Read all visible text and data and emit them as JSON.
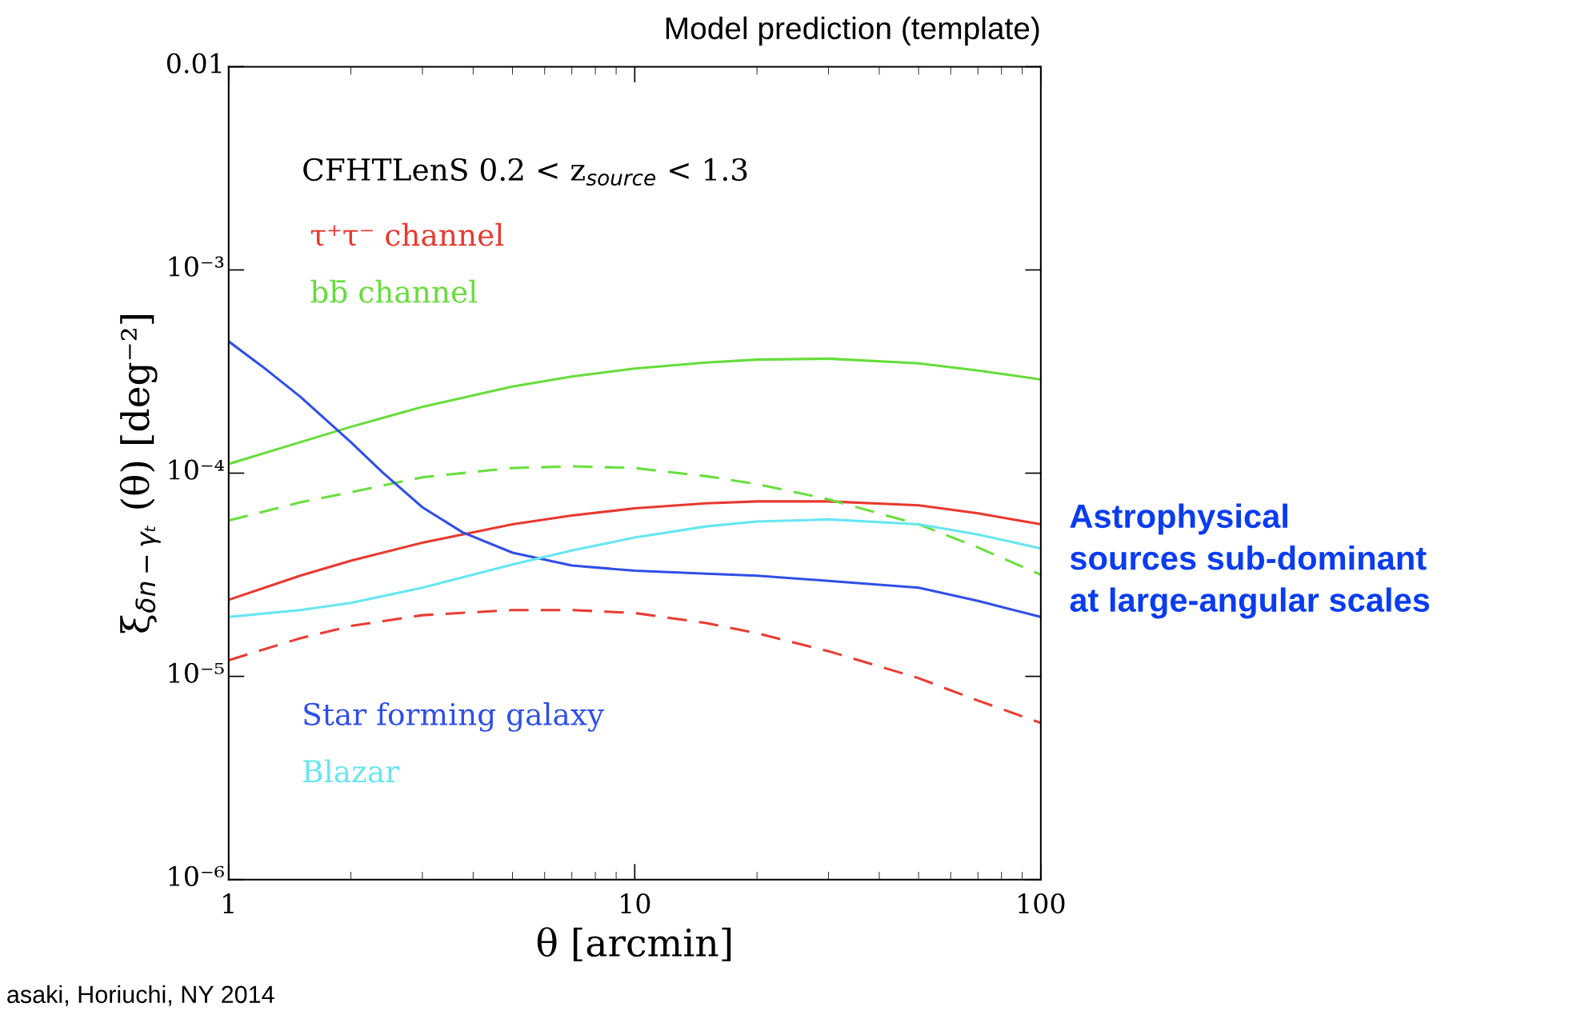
{
  "chart_data": {
    "type": "line",
    "title": "Model prediction (template)",
    "xlabel": "θ [arcmin]",
    "ylabel": "ξ$_{δn−γₜ}$ (θ) [deg⁻²]",
    "log": "xy",
    "xlim": [
      1,
      100
    ],
    "ylim": [
      1e-06,
      0.01
    ],
    "xticks": [
      1,
      10,
      100
    ],
    "yticks": [
      {
        "value": 1e-06,
        "label": "10⁻⁶"
      },
      {
        "value": 1e-05,
        "label": "10⁻⁵"
      },
      {
        "value": 0.0001,
        "label": "10⁻⁴"
      },
      {
        "value": 0.001,
        "label": "10⁻³"
      },
      {
        "value": 0.01,
        "label": "0.01"
      }
    ],
    "grid": false,
    "series": [
      {
        "name": "τ⁺τ⁻ channel",
        "color": "#e8392f",
        "line_style": "solid",
        "x": [
          1,
          1.5,
          2,
          3,
          5,
          7,
          10,
          15,
          20,
          30,
          50,
          70,
          100
        ],
        "values": [
          2.38e-05,
          3.13e-05,
          3.71e-05,
          4.55e-05,
          5.6e-05,
          6.19e-05,
          6.71e-05,
          7.1e-05,
          7.26e-05,
          7.26e-05,
          6.95e-05,
          6.34e-05,
          5.6e-05
        ]
      },
      {
        "color": "#ea3c33",
        "line_style": "dashed",
        "x": [
          1,
          1.5,
          2,
          3,
          5,
          7,
          10,
          15,
          20,
          30,
          50,
          70,
          100
        ],
        "values": [
          1.2e-05,
          1.54e-05,
          1.77e-05,
          2e-05,
          2.12e-05,
          2.12e-05,
          2.05e-05,
          1.83e-05,
          1.63e-05,
          1.33e-05,
          9.8e-06,
          7.6e-06,
          5.9e-06
        ]
      },
      {
        "name": "bb̄ channel",
        "color": "#66dd3a",
        "line_style": "solid",
        "x": [
          1,
          1.5,
          2,
          3,
          5,
          7,
          10,
          15,
          20,
          30,
          50,
          70,
          100
        ],
        "values": [
          0.000111,
          0.000142,
          0.000169,
          0.000212,
          0.000267,
          0.000299,
          0.000327,
          0.00035,
          0.000362,
          0.000366,
          0.000347,
          0.00032,
          0.000289
        ]
      },
      {
        "color": "#69df3e",
        "line_style": "dashed",
        "x": [
          1,
          1.5,
          2,
          3,
          5,
          7,
          10,
          15,
          20,
          30,
          50,
          70,
          100
        ],
        "values": [
          5.85e-05,
          7.18e-05,
          8.05e-05,
          9.55e-05,
          0.000106,
          0.000108,
          0.000106,
          9.66e-05,
          8.83e-05,
          7.43e-05,
          5.6e-05,
          4.31e-05,
          3.16e-05
        ]
      },
      {
        "name": "Star forming galaxy",
        "color": "#2f4fe8",
        "line_style": "solid",
        "x": [
          1,
          1.21,
          1.5,
          2,
          2.39,
          3,
          3.77,
          5,
          7,
          10,
          15,
          20,
          30,
          50,
          70,
          100
        ],
        "values": [
          0.000445,
          0.000335,
          0.000238,
          0.000142,
          0.000101,
          6.79e-05,
          5.11e-05,
          4.06e-05,
          3.51e-05,
          3.31e-05,
          3.2e-05,
          3.13e-05,
          2.95e-05,
          2.73e-05,
          2.35e-05,
          1.96e-05
        ]
      },
      {
        "name": "Blazar",
        "color": "#66e6f0",
        "line_style": "solid",
        "x": [
          1,
          1.5,
          2,
          3,
          5,
          7,
          10,
          15,
          20,
          30,
          50,
          70,
          100
        ],
        "values": [
          1.96e-05,
          2.12e-05,
          2.3e-05,
          2.73e-05,
          3.55e-05,
          4.16e-05,
          4.82e-05,
          5.47e-05,
          5.78e-05,
          5.92e-05,
          5.6e-05,
          4.99e-05,
          4.26e-05
        ]
      }
    ],
    "annotations": [
      "CFHTLenS 0.2 < z$_{source}$ < 1.3",
      "Astrophysical\nsources sub-dominant\nat large-angular scales",
      "asaki, Horiuchi, NY 2014"
    ]
  }
}
